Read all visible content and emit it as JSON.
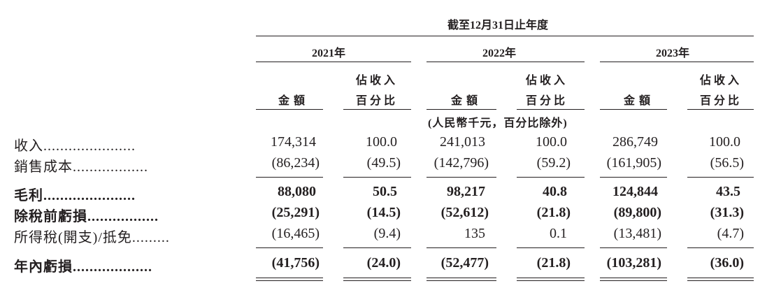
{
  "header": {
    "period_title": "截至12月31日止年度",
    "years": [
      "2021年",
      "2022年",
      "2023年"
    ],
    "col_amount": "金額",
    "col_pct_line1": "佔收入",
    "col_pct_line2": "百分比",
    "unit_note": "(人民幣千元，百分比除外)"
  },
  "rows": [
    {
      "label": "收入",
      "dots": "......................",
      "bold": false,
      "values": [
        "174,314",
        "100.0",
        "241,013",
        "100.0",
        "286,749",
        "100.0"
      ]
    },
    {
      "label": "銷售成本",
      "dots": "..................",
      "bold": false,
      "values": [
        "(86,234)",
        "(49.5)",
        "(142,796)",
        "(59.2)",
        "(161,905)",
        "(56.5)"
      ]
    },
    {
      "label": "毛利",
      "dots": "......................",
      "bold": true,
      "values": [
        "88,080",
        "50.5",
        "98,217",
        "40.8",
        "124,844",
        "43.5"
      ]
    },
    {
      "label": "除稅前虧損",
      "dots": ".................",
      "bold": true,
      "values": [
        "(25,291)",
        "(14.5)",
        "(52,612)",
        "(21.8)",
        "(89,800)",
        "(31.3)"
      ]
    },
    {
      "label": "所得稅(開支)/抵免",
      "dots": ".........",
      "bold": false,
      "values": [
        "(16,465)",
        "(9.4)",
        "135",
        "0.1",
        "(13,481)",
        "(4.7)"
      ]
    },
    {
      "label": "年內虧損",
      "dots": "...................",
      "bold": true,
      "values": [
        "(41,756)",
        "(24.0)",
        "(52,477)",
        "(21.8)",
        "(103,281)",
        "(36.0)"
      ]
    }
  ]
}
